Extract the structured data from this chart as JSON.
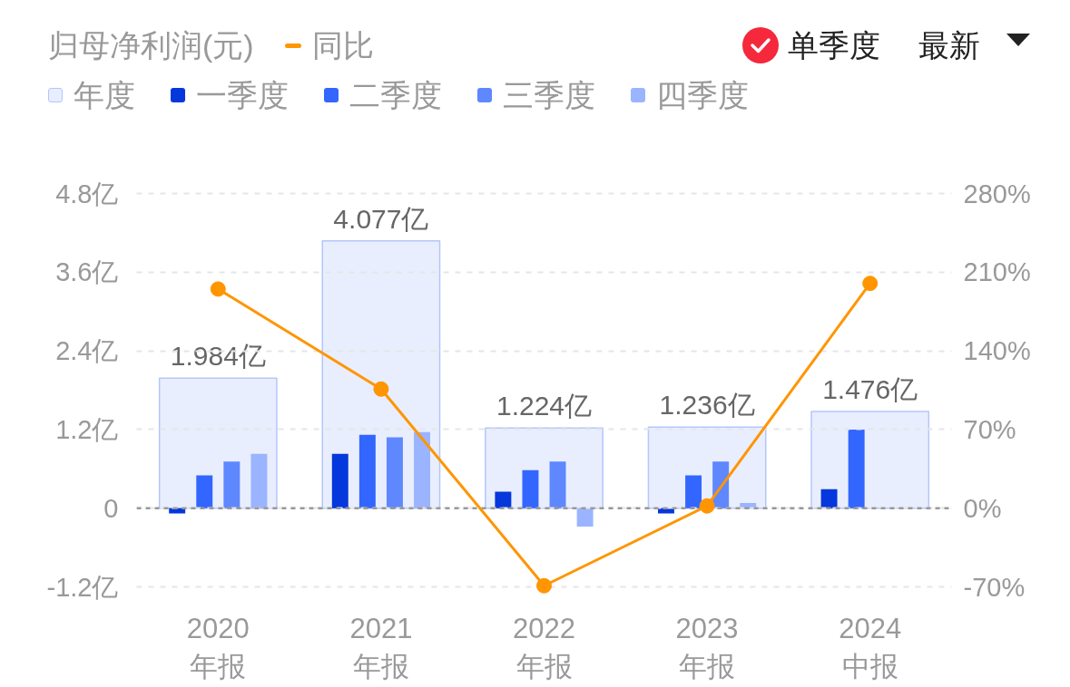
{
  "chart_data": {
    "type": "bar",
    "title": "归母净利润(元)",
    "categories": [
      "2020\n年报",
      "2021\n年报",
      "2022\n年报",
      "2023\n年报",
      "2024\n中报"
    ],
    "series": [
      {
        "name": "年度",
        "color": "#e8eefd",
        "values": [
          1.984,
          4.077,
          1.224,
          1.236,
          1.476
        ],
        "value_labels": [
          "1.984亿",
          "4.077亿",
          "1.224亿",
          "1.236亿",
          "1.476亿"
        ]
      },
      {
        "name": "一季度",
        "color": "#0437dc",
        "values": [
          -0.08,
          0.83,
          0.25,
          -0.08,
          0.29
        ]
      },
      {
        "name": "二季度",
        "color": "#3366ff",
        "values": [
          0.5,
          1.12,
          0.58,
          0.5,
          1.2
        ]
      },
      {
        "name": "三季度",
        "color": "#5f87fe",
        "values": [
          0.71,
          1.08,
          0.71,
          0.71,
          null
        ]
      },
      {
        "name": "四季度",
        "color": "#9bb4ff",
        "values": [
          0.83,
          1.16,
          -0.28,
          0.08,
          null
        ]
      },
      {
        "name": "同比",
        "type": "line",
        "axis": "y2",
        "color": "#ff9500",
        "values": [
          195,
          106,
          -69,
          2,
          200
        ]
      }
    ],
    "ylim": [
      -1.2,
      4.8
    ],
    "yticks": [
      {
        "value": -1.2,
        "label": "-1.2亿"
      },
      0,
      {
        "value": 1.2,
        "label": "1.2亿"
      },
      {
        "value": 2.4,
        "label": "2.4亿"
      },
      {
        "value": 3.6,
        "label": "3.6亿"
      },
      {
        "value": 4.8,
        "label": "4.8亿"
      }
    ],
    "y2lim": [
      -70,
      280
    ],
    "y2ticks": [
      {
        "value": -70,
        "label": "-70%"
      },
      {
        "value": 0,
        "label": "0%"
      },
      {
        "value": 70,
        "label": "70%"
      },
      {
        "value": 140,
        "label": "140%"
      },
      {
        "value": 210,
        "label": "210%"
      },
      {
        "value": 280,
        "label": "280%"
      }
    ],
    "ref_lines": [
      {
        "axis": "y",
        "value": 0,
        "color": "#999999",
        "line_style": "dashed"
      }
    ],
    "grid": "y",
    "legend": "top left",
    "marker": "circle",
    "annotations": [
      "单季度",
      "最新"
    ]
  }
}
